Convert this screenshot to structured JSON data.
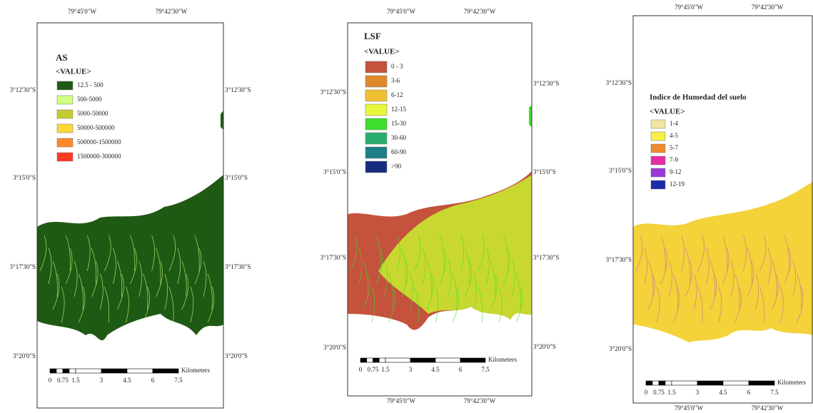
{
  "panels": [
    {
      "legend_title": "AS",
      "legend_subtitle": "<VALUE>",
      "legend_items": [
        {
          "label": "12.5 - 500",
          "color": "#1f5a14"
        },
        {
          "label": "500-5000",
          "color": "#d2ff80"
        },
        {
          "label": "5000-50000",
          "color": "#c6cc30"
        },
        {
          "label": "50000-500000",
          "color": "#ffd53a"
        },
        {
          "label": "500000-1500000",
          "color": "#ff8a2a"
        },
        {
          "label": "1500000-300000",
          "color": "#ff3a24"
        }
      ],
      "top_labels": [
        "79°45'0\"W",
        "79°42'30\"W"
      ],
      "left_labels": [
        "3°12'30\"S",
        "3°15'0\"S",
        "3°17'30\"S",
        "3°20'0\"S"
      ],
      "right_labels": [
        "3°12'30\"S",
        "3°15'0\"S",
        "3°17'30\"S",
        "3°20'0\"S"
      ],
      "scale_labels": [
        "0",
        "0.75",
        "1.5",
        "3",
        "4.5",
        "6",
        "7.5"
      ],
      "scale_unit": "Kilometers"
    },
    {
      "legend_title": "LSF",
      "legend_subtitle": "<VALUE>",
      "legend_items": [
        {
          "label": "0 - 3",
          "color": "#c4523c"
        },
        {
          "label": "3-6",
          "color": "#e0892c"
        },
        {
          "label": "6-12",
          "color": "#f0c034"
        },
        {
          "label": "12-15",
          "color": "#e8f63c"
        },
        {
          "label": "15-30",
          "color": "#3ede2c"
        },
        {
          "label": "30-60",
          "color": "#2aae6e"
        },
        {
          "label": "60-90",
          "color": "#1f7e88"
        },
        {
          "label": ">90",
          "color": "#152c7e"
        }
      ],
      "top_labels": [
        "79°45'0\"W",
        "79°42'30\"W"
      ],
      "left_labels": [
        "3°12'30\"S",
        "3°15'0\"S",
        "3°17'30\"S",
        "3°20'0\"S"
      ],
      "right_labels": [
        "3°12'30\"S",
        "3°15'0\"S",
        "3°17'30\"S",
        "3°20'0\"S"
      ],
      "bottom_labels": [
        "79°45'0\"W",
        "79°42'30\"W"
      ],
      "scale_labels": [
        "0",
        "0.75",
        "1.5",
        "3",
        "4.5",
        "6",
        "7.5"
      ],
      "scale_unit": "Kilometers"
    },
    {
      "legend_title": "Indice de Humedad del suelo",
      "legend_subtitle": "<VALUE>",
      "legend_items": [
        {
          "label": "1-4",
          "color": "#efe6a2"
        },
        {
          "label": "4-5",
          "color": "#f8f044"
        },
        {
          "label": "5-7",
          "color": "#f08a30"
        },
        {
          "label": "7-9",
          "color": "#e62ca2"
        },
        {
          "label": "9-12",
          "color": "#9a3ad8"
        },
        {
          "label": "12-19",
          "color": "#1a2aa8"
        }
      ],
      "top_labels": [
        "79°45'0\"W",
        "79°42'30\"W"
      ],
      "left_labels": [
        "3°12'30\"S",
        "3°15'0\"S",
        "3°17'30\"S",
        "3°20'0\"S"
      ],
      "bottom_labels": [
        "79°45'0\"W",
        "79°42'30\"W"
      ],
      "scale_labels": [
        "0",
        "0.75",
        "1.5",
        "3",
        "4.5",
        "6",
        "7.5"
      ],
      "scale_unit": "Kilometers"
    }
  ]
}
